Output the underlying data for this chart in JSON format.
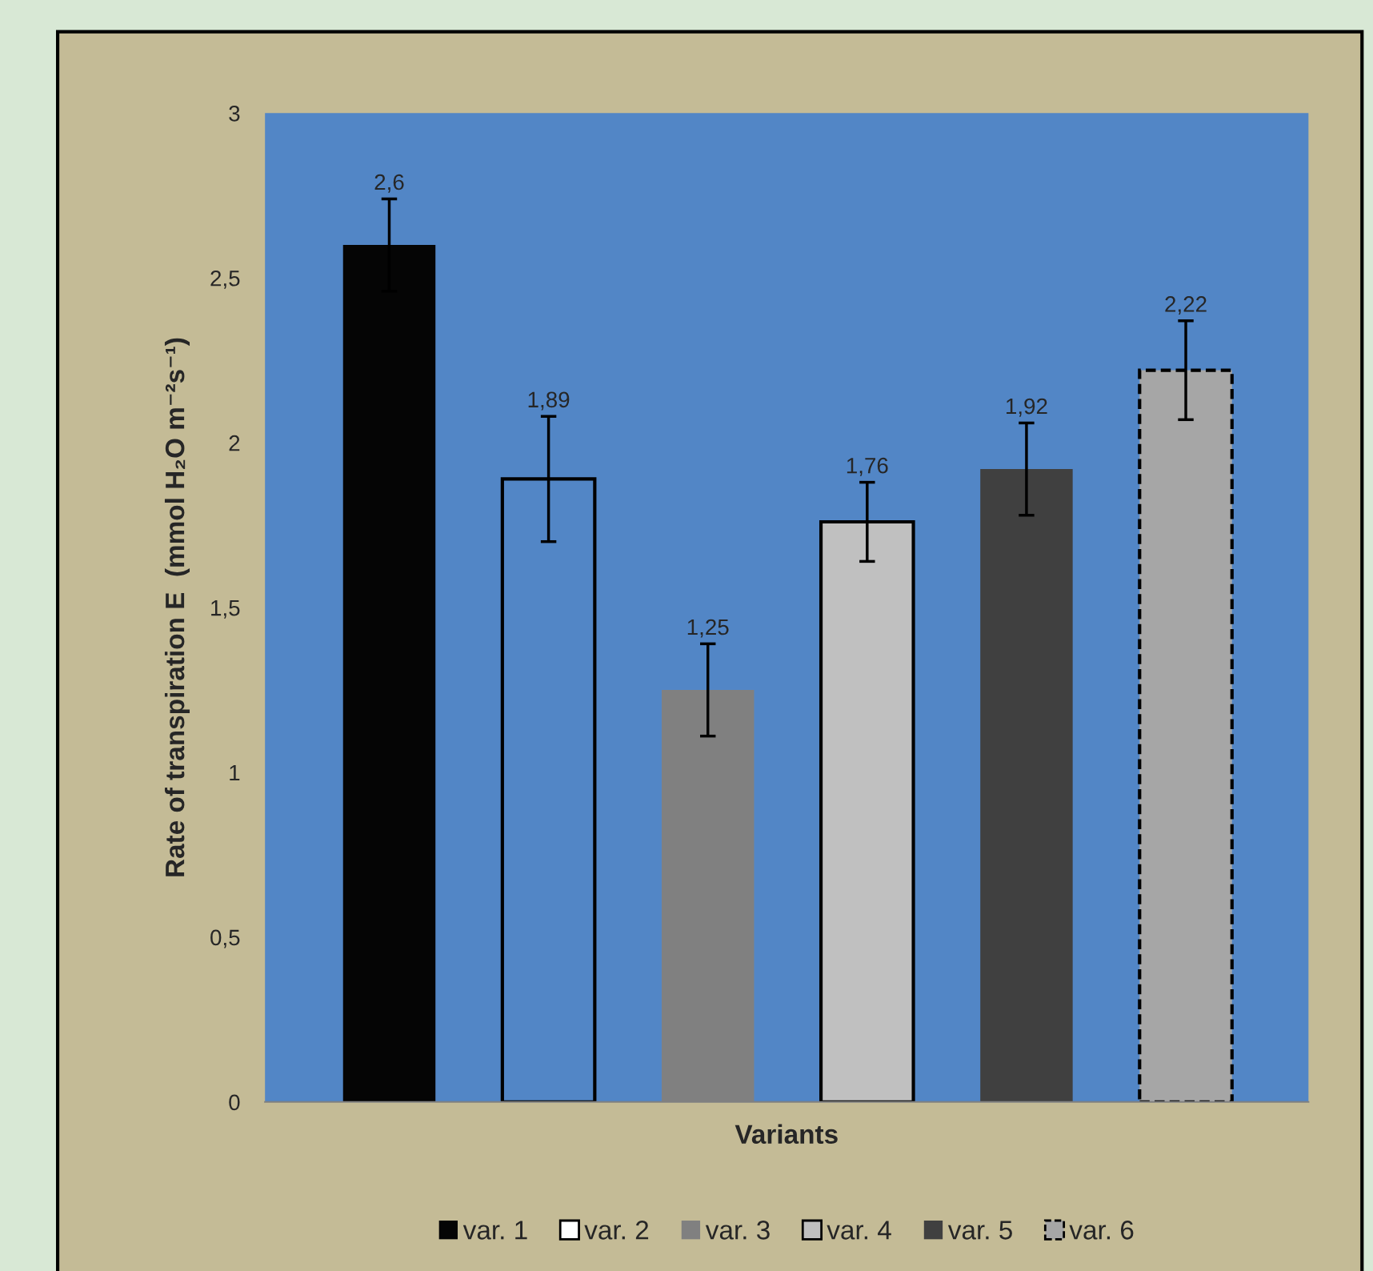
{
  "chart_data": {
    "type": "bar",
    "xlabel": "Variants",
    "ylabel": "Rate of transpiration E  (mmol H₂O m⁻²s⁻¹)",
    "categories": [
      null,
      null,
      null,
      null,
      null,
      null
    ],
    "series": [
      {
        "name": "var. 1",
        "color": "#050505",
        "values": [
          2.6,
          null,
          null,
          null,
          null,
          null
        ],
        "errors": [
          0.14,
          null,
          null,
          null,
          null,
          null
        ],
        "value_labels": [
          "2,6",
          null,
          null,
          null,
          null,
          null
        ]
      },
      {
        "name": "var. 2",
        "color": "#5286c6",
        "line_style": "solid",
        "values": [
          null,
          1.89,
          null,
          null,
          null,
          null
        ],
        "errors": [
          null,
          0.19,
          null,
          null,
          null,
          null
        ],
        "value_labels": [
          null,
          "1,89",
          null,
          null,
          null,
          null
        ]
      },
      {
        "name": "var. 3",
        "color": "#808080",
        "values": [
          null,
          null,
          1.25,
          null,
          null,
          null
        ],
        "errors": [
          null,
          null,
          0.14,
          null,
          null,
          null
        ],
        "value_labels": [
          null,
          null,
          "1,25",
          null,
          null,
          null
        ]
      },
      {
        "name": "var. 4",
        "color": "#c0c0c0",
        "line_style": "solid",
        "values": [
          null,
          null,
          null,
          1.76,
          null,
          null
        ],
        "errors": [
          null,
          null,
          null,
          0.12,
          null,
          null
        ],
        "value_labels": [
          null,
          null,
          null,
          "1,76",
          null,
          null
        ]
      },
      {
        "name": "var. 5",
        "color": "#404040",
        "values": [
          null,
          null,
          null,
          null,
          1.92,
          null
        ],
        "errors": [
          null,
          null,
          null,
          null,
          0.14,
          null
        ],
        "value_labels": [
          null,
          null,
          null,
          null,
          "1,92",
          null
        ]
      },
      {
        "name": "var. 6",
        "color": "#a6a6a6",
        "line_style": "dashed",
        "values": [
          null,
          null,
          null,
          null,
          null,
          2.22
        ],
        "errors": [
          null,
          null,
          null,
          null,
          null,
          0.15
        ],
        "value_labels": [
          null,
          null,
          null,
          null,
          null,
          "2,22"
        ]
      }
    ],
    "ylim": [
      0,
      3
    ],
    "yticks": [
      0,
      {
        "value": 0.5,
        "label": "0,5"
      },
      1,
      {
        "value": 1.5,
        "label": "1,5"
      },
      2,
      {
        "value": 2.5,
        "label": "2,5"
      },
      3
    ],
    "grid": false,
    "legend": "bottom",
    "tick_labels": "y"
  }
}
